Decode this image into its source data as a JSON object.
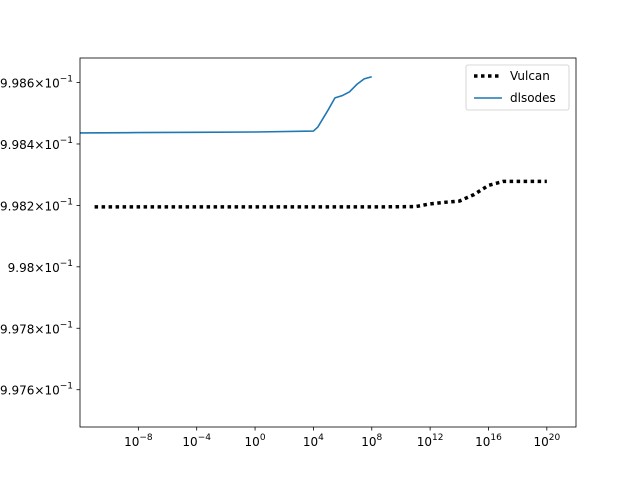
{
  "chart_data": {
    "type": "line",
    "title": "",
    "xlabel": "",
    "ylabel": "",
    "x_scale": "log",
    "y_scale": "log",
    "xlim": [
      1e-12,
      1e+22
    ],
    "ylim": [
      0.9974787,
      0.99868
    ],
    "grid": false,
    "legend_position": "top-right",
    "x_ticks": [
      {
        "value": 1e-08,
        "label": "10",
        "exp": "−8"
      },
      {
        "value": 0.0001,
        "label": "10",
        "exp": "−4"
      },
      {
        "value": 1,
        "label": "10",
        "exp": "0"
      },
      {
        "value": 10000.0,
        "label": "10",
        "exp": "4"
      },
      {
        "value": 100000000.0,
        "label": "10",
        "exp": "8"
      },
      {
        "value": 1000000000000.0,
        "label": "10",
        "exp": "12"
      },
      {
        "value": 1e+16,
        "label": "10",
        "exp": "16"
      },
      {
        "value": 1e+20,
        "label": "10",
        "exp": "20"
      }
    ],
    "y_ticks": [
      {
        "value": 0.9976,
        "label": "9.976×10",
        "exp": "−1"
      },
      {
        "value": 0.9978,
        "label": "9.978×10",
        "exp": "−1"
      },
      {
        "value": 0.998,
        "label": "9.98×10",
        "exp": "−1"
      },
      {
        "value": 0.9982,
        "label": "9.982×10",
        "exp": "−1"
      },
      {
        "value": 0.9984,
        "label": "9.984×10",
        "exp": "−1"
      },
      {
        "value": 0.9986,
        "label": "9.986×10",
        "exp": "−1"
      }
    ],
    "series": [
      {
        "name": "Vulcan",
        "style": "dotted",
        "color": "#000000",
        "points": [
          [
            1e-11,
            0.998195
          ],
          [
            1e-08,
            0.998195
          ],
          [
            0.0001,
            0.998195
          ],
          [
            1,
            0.998195
          ],
          [
            10000.0,
            0.998195
          ],
          [
            100000000.0,
            0.998195
          ],
          [
            100000000000.0,
            0.998196
          ],
          [
            1000000000000.0,
            0.998205
          ],
          [
            10000000000000.0,
            0.99821
          ],
          [
            100000000000000.0,
            0.998214
          ],
          [
            1000000000000000.0,
            0.998235
          ],
          [
            1e+16,
            0.998265
          ],
          [
            1e+17,
            0.998278
          ],
          [
            1e+18,
            0.998278
          ],
          [
            1e+20,
            0.998278
          ]
        ]
      },
      {
        "name": "dlsodes",
        "style": "solid",
        "color": "#1f77b4",
        "points": [
          [
            1e-12,
            0.998436
          ],
          [
            1e-08,
            0.998437
          ],
          [
            0.0001,
            0.998438
          ],
          [
            1,
            0.998439
          ],
          [
            10000.0,
            0.998442
          ],
          [
            10000.0,
            0.998442
          ],
          [
            20000.0,
            0.998455
          ],
          [
            100000.0,
            0.99851
          ],
          [
            300000.0,
            0.99855
          ],
          [
            1000000.0,
            0.998558
          ],
          [
            3000000.0,
            0.99857
          ],
          [
            10000000.0,
            0.998595
          ],
          [
            30000000.0,
            0.998612
          ],
          [
            100000000.0,
            0.998619
          ]
        ]
      }
    ]
  }
}
